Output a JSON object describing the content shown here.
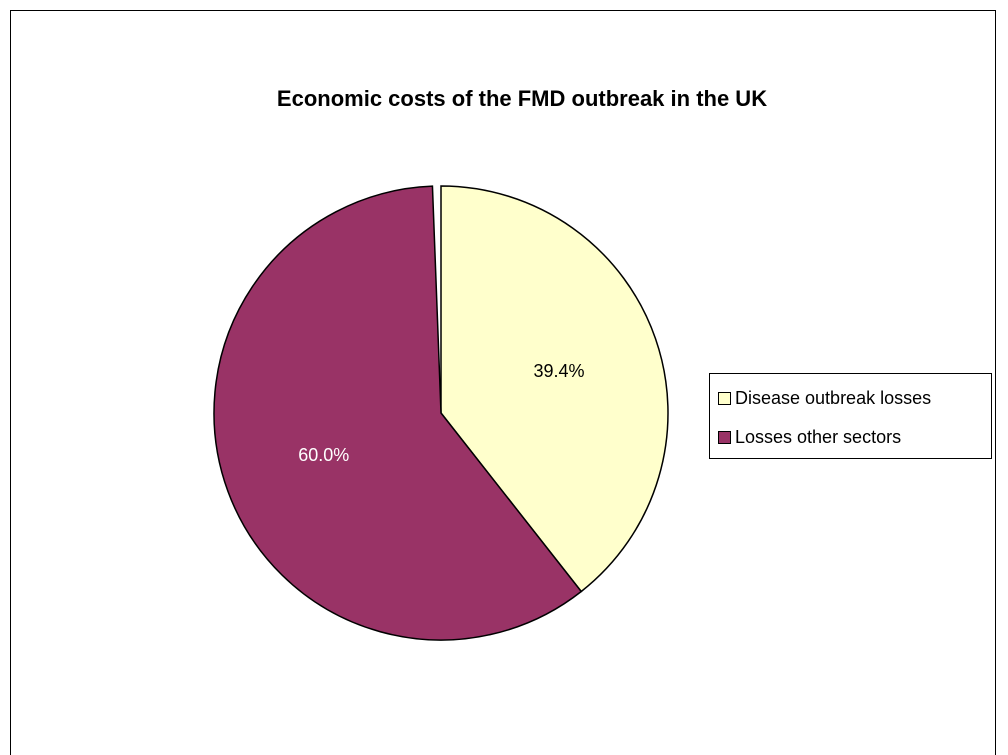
{
  "chart_data": {
    "type": "pie",
    "title": "Economic costs of the FMD outbreak in the UK",
    "slices": [
      {
        "name": "Disease outbreak losses",
        "value": 39.4,
        "label": "39.4%",
        "color": "#ffffcc"
      },
      {
        "name": "Losses other sectors",
        "value": 60.0,
        "label": "60.0%",
        "color": "#993366"
      }
    ],
    "legend_position": "right"
  }
}
